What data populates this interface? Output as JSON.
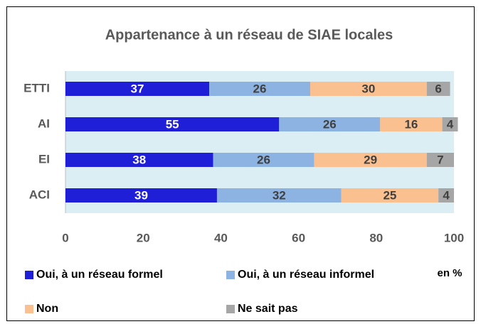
{
  "chart_data": {
    "type": "stacked_barh",
    "title": "Appartenance à un réseau de SIAE locales",
    "categories": [
      "ETTI",
      "AI",
      "EI",
      "ACI"
    ],
    "series": [
      {
        "name": "Oui, à un réseau formel",
        "color": "#1f1fd8",
        "label_color": "#ffffff",
        "values": [
          37,
          55,
          38,
          39
        ]
      },
      {
        "name": "Oui, à un réseau informel",
        "color": "#8db3e2",
        "label_color": "#404040",
        "values": [
          26,
          26,
          26,
          32
        ]
      },
      {
        "name": "Non",
        "color": "#fac08f",
        "label_color": "#404040",
        "values": [
          30,
          16,
          29,
          25
        ]
      },
      {
        "name": "Ne sait pas",
        "color": "#a6a6a6",
        "label_color": "#404040",
        "values": [
          6,
          4,
          7,
          4
        ]
      }
    ],
    "xlim": [
      0,
      100
    ],
    "xticks": [
      0,
      20,
      40,
      60,
      80,
      100
    ],
    "annotation": "en %",
    "plot_background": "#daeef3",
    "grid": false
  }
}
